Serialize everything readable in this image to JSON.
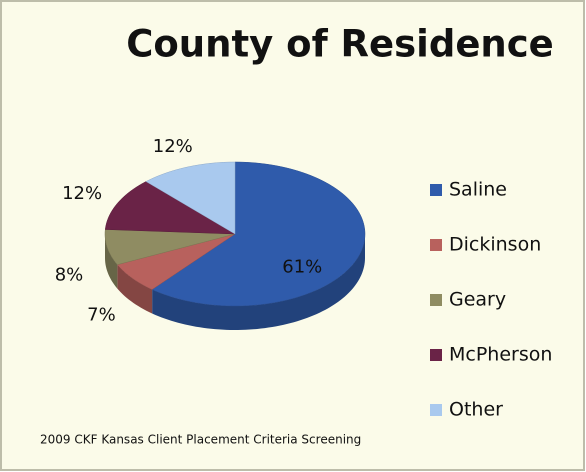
{
  "chart_data": {
    "type": "pie",
    "title": "County of Residence",
    "categories": [
      "Saline",
      "Dickinson",
      "Geary",
      "McPherson",
      "Other"
    ],
    "values": [
      61,
      7,
      8,
      12,
      12
    ],
    "value_labels": [
      "61%",
      "7%",
      "8%",
      "12%",
      "12%"
    ],
    "colors": [
      "#2f5bab",
      "#b8615d",
      "#8f8c62",
      "#6a2347",
      "#a9c9ee"
    ],
    "legend": "right",
    "three_d": true,
    "footnote": "2009 CKF Kansas Client Placement Criteria Screening"
  }
}
